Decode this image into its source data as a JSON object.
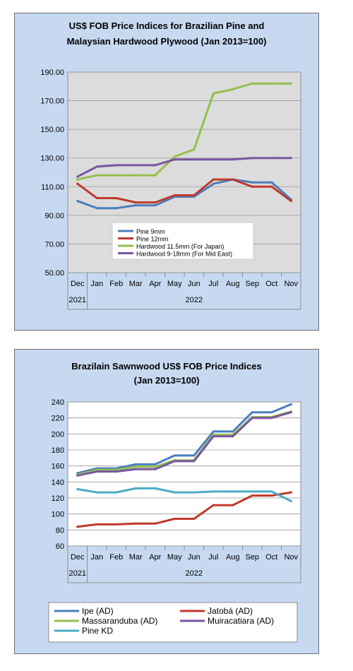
{
  "chart_data": [
    {
      "type": "line",
      "title": "US$ FOB Price Indices for Brazilian  Pine and",
      "subtitle": "Malaysian Hardwood Plywood (Jan 2013=100)",
      "categories": [
        "Dec",
        "Jan",
        "Feb",
        "Mar",
        "Apr",
        "May",
        "Jun",
        "Jul",
        "Aug",
        "Sep",
        "Oct",
        "Nov"
      ],
      "year_labels": [
        "2021",
        "2022"
      ],
      "ylim": [
        50,
        190
      ],
      "yticks": [
        "50.00",
        "70.00",
        "90.00",
        "110.00",
        "130.00",
        "150.00",
        "170.00",
        "190.00"
      ],
      "legend_position": "inside-lower-center",
      "series": [
        {
          "name": "Pine 9mm",
          "color": "#4a7ebb",
          "values": [
            100,
            95,
            95,
            97,
            97,
            103,
            103,
            112,
            115,
            113,
            113,
            101
          ]
        },
        {
          "name": "Pine 12mm",
          "color": "#c0392b",
          "values": [
            112,
            102,
            102,
            99,
            99,
            104,
            104,
            115,
            115,
            110,
            110,
            100
          ]
        },
        {
          "name": "Hardwood 11.5mm (For Japan)",
          "color": "#92c04c",
          "values": [
            115,
            118,
            118,
            118,
            118,
            131,
            136,
            175,
            178,
            182,
            182,
            182
          ]
        },
        {
          "name": "Hardwood 9-18mm (For Mid East)",
          "color": "#7b55a3",
          "values": [
            117,
            124,
            125,
            125,
            125,
            129,
            129,
            129,
            129,
            130,
            130,
            130
          ]
        }
      ]
    },
    {
      "type": "line",
      "title": "Brazilain Sawnwood US$ FOB Price Indices",
      "subtitle": "(Jan 2013=100)",
      "categories": [
        "Dec",
        "Jan",
        "Feb",
        "Mar",
        "Apr",
        "May",
        "Jun",
        "Jul",
        "Aug",
        "Sep",
        "Oct",
        "Nov"
      ],
      "year_labels": [
        "2021",
        "2022"
      ],
      "ylim": [
        60,
        240
      ],
      "yticks": [
        "60",
        "80",
        "100",
        "120",
        "140",
        "160",
        "180",
        "200",
        "220",
        "240"
      ],
      "legend_position": "bottom",
      "series": [
        {
          "name": "Ipe (AD)",
          "color": "#4a7ebb",
          "values": [
            151,
            157,
            157,
            162,
            162,
            173,
            173,
            203,
            203,
            227,
            227,
            237
          ]
        },
        {
          "name": "Jatobá (AD)",
          "color": "#c0392b",
          "values": [
            84,
            87,
            87,
            88,
            88,
            94,
            94,
            111,
            111,
            123,
            123,
            127
          ]
        },
        {
          "name": "Massaranduba (AD)",
          "color": "#92c04c",
          "values": [
            149,
            155,
            155,
            159,
            159,
            167,
            167,
            199,
            199,
            221,
            221,
            228
          ]
        },
        {
          "name": "Muiracatiara (AD)",
          "color": "#7b55a3",
          "values": [
            148,
            153,
            153,
            156,
            156,
            166,
            166,
            197,
            197,
            220,
            220,
            227
          ]
        },
        {
          "name": "Pine KD",
          "color": "#4bacc6",
          "values": [
            131,
            127,
            127,
            132,
            132,
            127,
            127,
            128,
            128,
            128,
            128,
            116
          ]
        }
      ]
    }
  ]
}
